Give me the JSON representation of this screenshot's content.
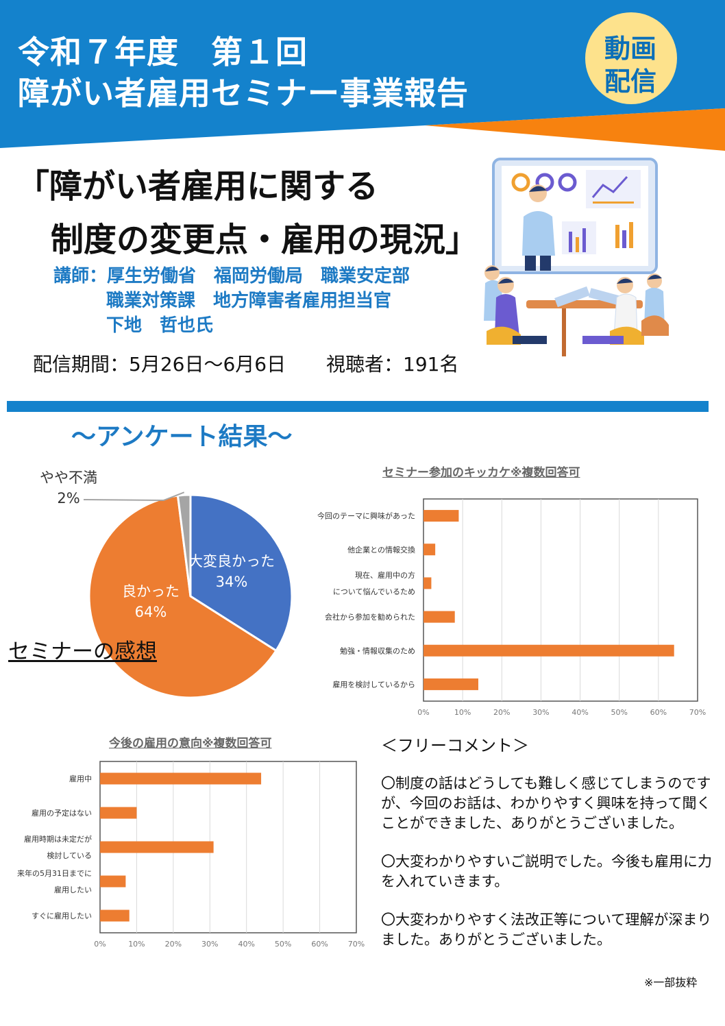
{
  "header": {
    "title_line1": "令和７年度　第１回",
    "title_line2": "障がい者雇用セミナー事業報告",
    "badge_line1": "動画",
    "badge_line2": "配信",
    "colors": {
      "blue": "#1482cc",
      "orange": "#f7820f",
      "badge": "#fde28c"
    }
  },
  "seminar": {
    "title_line1": "「障がい者雇用に関する",
    "title_line2": "制度の変更点・雇用の現況」",
    "lecturer_line1": "講師：厚生労働省　福岡労働局　職業安定部",
    "lecturer_line2": "職業対策課　地方障害者雇用担当官",
    "lecturer_line3": "下地　哲也氏",
    "period": "配信期間：5月26日～6月6日",
    "viewers": "視聴者：191名"
  },
  "survey": {
    "heading": "～アンケート結果～",
    "pie_caption": "セミナーの感想"
  },
  "chart_data": [
    {
      "type": "pie",
      "title": "",
      "slices": [
        {
          "label": "大変良かった",
          "value": 34,
          "display": "34%",
          "color": "#4472c4"
        },
        {
          "label": "良かった",
          "value": 64,
          "display": "64%",
          "color": "#ed7d31"
        },
        {
          "label": "やや不満",
          "value": 2,
          "display": "2%",
          "color": "#a5a5a5"
        }
      ]
    },
    {
      "type": "bar",
      "orientation": "horizontal",
      "title": "セミナー参加のキッカケ※複数回答可",
      "categories": [
        "今回のテーマに興味があった",
        "他企業との情報交換",
        "現在、雇用中の方|について悩んでいるため",
        "会社から参加を勧められた",
        "勉強・情報収集のため",
        "雇用を検討しているから"
      ],
      "values": [
        9,
        3,
        2,
        8,
        64,
        14
      ],
      "xlim": [
        0,
        70
      ],
      "ticks": [
        "0%",
        "10%",
        "20%",
        "30%",
        "40%",
        "50%",
        "60%",
        "70%"
      ],
      "grid": true,
      "color": "#ed7d31"
    },
    {
      "type": "bar",
      "orientation": "horizontal",
      "title": "今後の雇用の意向※複数回答可",
      "categories": [
        "雇用中",
        "雇用の予定はない",
        "雇用時期は未定だが|検討している",
        "来年の5月31日までに|雇用したい",
        "すぐに雇用したい"
      ],
      "values": [
        44,
        10,
        31,
        7,
        8
      ],
      "xlim": [
        0,
        70
      ],
      "ticks": [
        "0%",
        "10%",
        "20%",
        "30%",
        "40%",
        "50%",
        "60%",
        "70%"
      ],
      "grid": true,
      "color": "#ed7d31"
    }
  ],
  "comments": {
    "heading": "＜フリーコメント＞",
    "items": [
      "〇制度の話はどうしても難しく感じてしまうのですが、今回のお話は、わかりやすく興味を持って聞くことができました、ありがとうございました。",
      "〇大変わかりやすいご説明でした。今後も雇用に力を入れていきます。",
      "〇大変わかりやすく法改正等について理解が深まりました。ありがとうございました。"
    ],
    "footnote": "※一部抜粋"
  }
}
